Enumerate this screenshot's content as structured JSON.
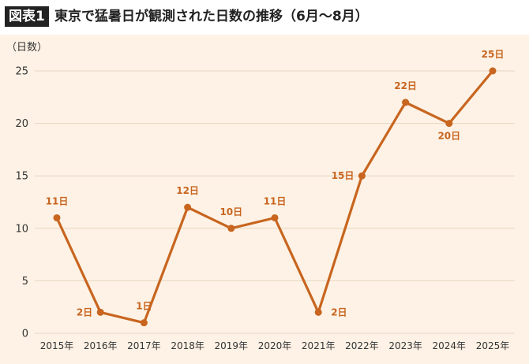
{
  "header": {
    "badge": "図表1",
    "title": "東京で猛暑日が観測された日数の推移（6月〜8月）"
  },
  "colors": {
    "line": "#c8651f",
    "label": "#c8651f",
    "grid": "#e6d6c2",
    "panel_bg": "#fdf2e5",
    "axis_text": "#333333"
  },
  "chart_data": {
    "type": "line",
    "title": "東京で猛暑日が観測された日数の推移（6月〜8月）",
    "ylabel": "（日数）",
    "xlabel": "",
    "categories": [
      "2015年",
      "2016年",
      "2017年",
      "2018年",
      "2019年",
      "2020年",
      "2021年",
      "2022年",
      "2023年",
      "2024年",
      "2025年"
    ],
    "values": [
      11,
      2,
      1,
      12,
      10,
      11,
      2,
      15,
      22,
      20,
      25
    ],
    "data_labels": [
      "11日",
      "2日",
      "1日",
      "12日",
      "10日",
      "11日",
      "2日",
      "15日",
      "22日",
      "20日",
      "25日"
    ],
    "label_positions": [
      "above",
      "left",
      "above",
      "above",
      "above",
      "above",
      "right",
      "left",
      "above",
      "below",
      "above"
    ],
    "yticks": [
      "0",
      "5",
      "10",
      "15",
      "20",
      "25"
    ],
    "ylim": [
      0,
      25
    ],
    "grid": true,
    "legend": "none"
  }
}
